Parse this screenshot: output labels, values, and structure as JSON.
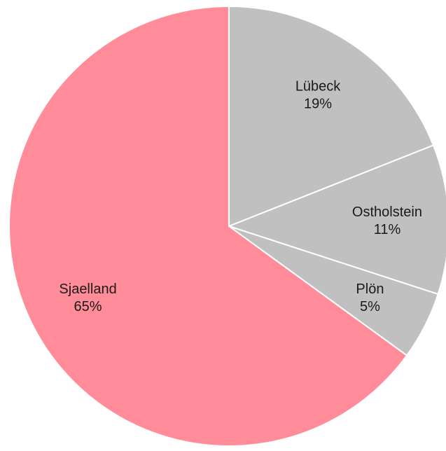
{
  "chart_data": {
    "type": "pie",
    "categories": [
      "Lübeck",
      "Ostholstein",
      "Plön",
      "Sjaelland"
    ],
    "values": [
      19,
      11,
      5,
      65
    ],
    "value_labels": [
      "19%",
      "11%",
      "5%",
      "65%"
    ],
    "colors": [
      "#c0c0c0",
      "#c0c0c0",
      "#c0c0c0",
      "#ff8c98"
    ]
  }
}
